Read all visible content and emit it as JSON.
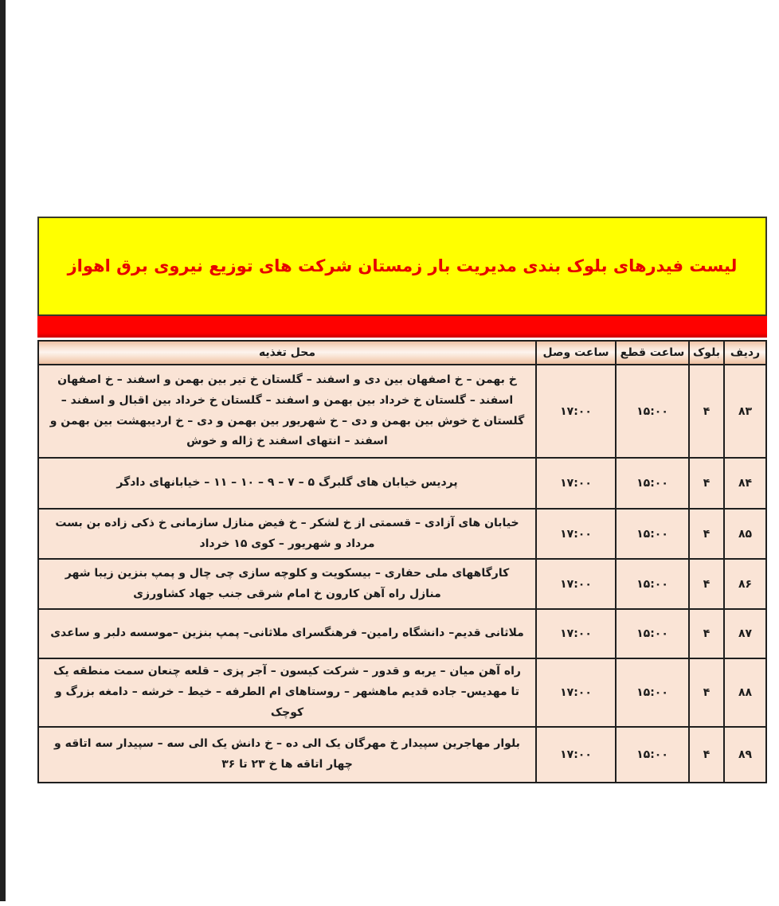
{
  "banner": {
    "title": "لیست فیدرهای بلوک بندی مدیریت بار زمستان شرکت های توزیع نیروی برق اهواز"
  },
  "colors": {
    "banner_bg": "#ffff00",
    "banner_text": "#e60000",
    "band": "#fe0100",
    "cell_bg": "#fae4d6",
    "header_bg": "#f3cdb2",
    "border": "#1f1f1f",
    "left_strip": "#212121"
  },
  "table": {
    "headers": {
      "radif": "ردیف",
      "block": "بلوک",
      "cut": "ساعت قطع",
      "connect": "ساعت وصل",
      "location": "محل تغذیه"
    },
    "rows": [
      {
        "radif": "۸۳",
        "block": "۴",
        "cut": "۱۵:۰۰",
        "connect": "۱۷:۰۰",
        "location": "خ بهمن – خ اصفهان بین دی و اسفند – گلستان خ تیر بین بهمن و اسفند – خ اصفهان اسفند – گلستان خ خرداد بین بهمن و اسفند – گلستان خ خرداد بین اقبال و اسفند – گلستان خ خوش بین بهمن و دی – خ شهریور بین بهمن و دی – خ اردیبهشت بین بهمن و اسفند – انتهای اسفند خ ژاله و خوش"
      },
      {
        "radif": "۸۴",
        "block": "۴",
        "cut": "۱۵:۰۰",
        "connect": "۱۷:۰۰",
        "location": "پردیس خیابان های گلبرگ ۵ – ۷ – ۹ – ۱۰ – ۱۱ – خیابانهای دادگر"
      },
      {
        "radif": "۸۵",
        "block": "۴",
        "cut": "۱۵:۰۰",
        "connect": "۱۷:۰۰",
        "location": "خیابان های آزادی – قسمتی از خ لشکر – خ فیض منازل سازمانی خ ذکی زاده بن بست مرداد و شهریور – کوی ۱۵ خرداد"
      },
      {
        "radif": "۸۶",
        "block": "۴",
        "cut": "۱۵:۰۰",
        "connect": "۱۷:۰۰",
        "location": "کارگاههای ملی حفاری – بیسکویت و کلوچه سازی چی چال و پمپ بنزین زیبا شهر منازل راه آهن کارون خ امام شرقی جنب جهاد کشاورزی"
      },
      {
        "radif": "۸۷",
        "block": "۴",
        "cut": "۱۵:۰۰",
        "connect": "۱۷:۰۰",
        "location": "ملاثانی قدیم– دانشگاه رامین– فرهنگسرای ملاثانی– پمپ بنزین –موسسه دلبر و ساعدی"
      },
      {
        "radif": "۸۸",
        "block": "۴",
        "cut": "۱۵:۰۰",
        "connect": "۱۷:۰۰",
        "location": "راه آهن میان – یربه و قدور – شرکت کیسون – آجر پزی – قلعه چنعان سمت منطقه یک تا مهدیس– جاده قدیم ماهشهر – روستاهای ام الطرفه – خیط – خرشه – دامغه بزرگ و کوچک"
      },
      {
        "radif": "۸۹",
        "block": "۴",
        "cut": "۱۵:۰۰",
        "connect": "۱۷:۰۰",
        "location": "بلوار مهاجرین سپیدار خ مهرگان یک الی ده – خ دانش یک الی سه – سپیدار سه اتاقه و چهار اتاقه ها خ ۲۳ تا ۳۶"
      }
    ]
  }
}
